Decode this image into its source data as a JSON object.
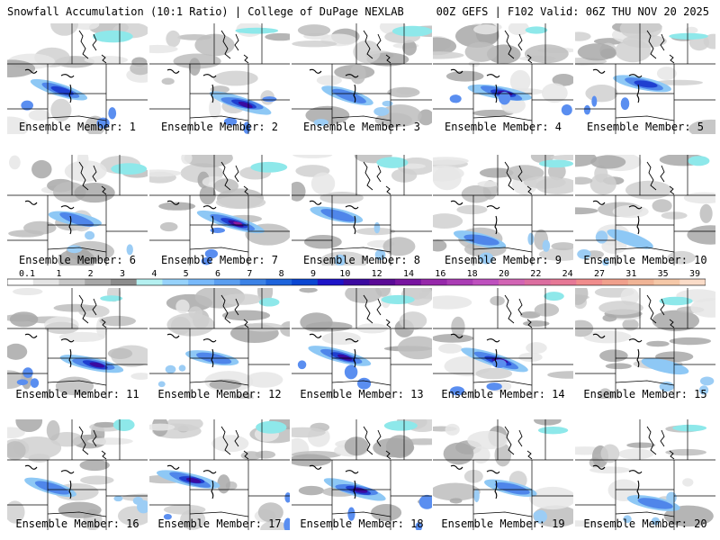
{
  "header": {
    "left": "Snowfall Accumulation (10:1 Ratio) | College of DuPage NEXLAB",
    "right": "00Z GEFS | F102 Valid: 06Z THU NOV 20 2025"
  },
  "members": [
    {
      "label": "Ensemble Member: 1",
      "intensity": 3
    },
    {
      "label": "Ensemble Member: 2",
      "intensity": 4
    },
    {
      "label": "Ensemble Member: 3",
      "intensity": 2
    },
    {
      "label": "Ensemble Member: 4",
      "intensity": 4
    },
    {
      "label": "Ensemble Member: 5",
      "intensity": 3
    },
    {
      "label": "Ensemble Member: 6",
      "intensity": 2
    },
    {
      "label": "Ensemble Member: 7",
      "intensity": 5
    },
    {
      "label": "Ensemble Member: 8",
      "intensity": 2
    },
    {
      "label": "Ensemble Member: 9",
      "intensity": 2
    },
    {
      "label": "Ensemble Member: 10",
      "intensity": 1
    },
    {
      "label": "Ensemble Member: 11",
      "intensity": 4
    },
    {
      "label": "Ensemble Member: 12",
      "intensity": 2
    },
    {
      "label": "Ensemble Member: 13",
      "intensity": 4
    },
    {
      "label": "Ensemble Member: 14",
      "intensity": 5
    },
    {
      "label": "Ensemble Member: 15",
      "intensity": 1
    },
    {
      "label": "Ensemble Member: 16",
      "intensity": 2
    },
    {
      "label": "Ensemble Member: 17",
      "intensity": 4
    },
    {
      "label": "Ensemble Member: 18",
      "intensity": 4
    },
    {
      "label": "Ensemble Member: 19",
      "intensity": 2
    },
    {
      "label": "Ensemble Member: 20",
      "intensity": 2
    }
  ],
  "colorbar": {
    "labels": [
      "0.1",
      "1",
      "2",
      "3",
      "4",
      "5",
      "6",
      "7",
      "8",
      "9",
      "10",
      "12",
      "14",
      "16",
      "18",
      "20",
      "22",
      "24",
      "27",
      "31",
      "35",
      "39"
    ],
    "colors": [
      "#ffffff",
      "#e4e4e4",
      "#c8c8c8",
      "#a8a8a8",
      "#8c8c8c",
      "#b4f0f0",
      "#96d2fa",
      "#78b9fa",
      "#5a9ef0",
      "#3c82e6",
      "#1e64dc",
      "#0a46d2",
      "#1e14c8",
      "#3c0aa0",
      "#5a0a96",
      "#7814a0",
      "#9628aa",
      "#aa3cb4",
      "#be50be",
      "#d264b4",
      "#dc6ea0",
      "#e67896",
      "#f08c8c",
      "#f0a08c",
      "#f0b496",
      "#f5c8a8",
      "#fadcc8"
    ]
  }
}
